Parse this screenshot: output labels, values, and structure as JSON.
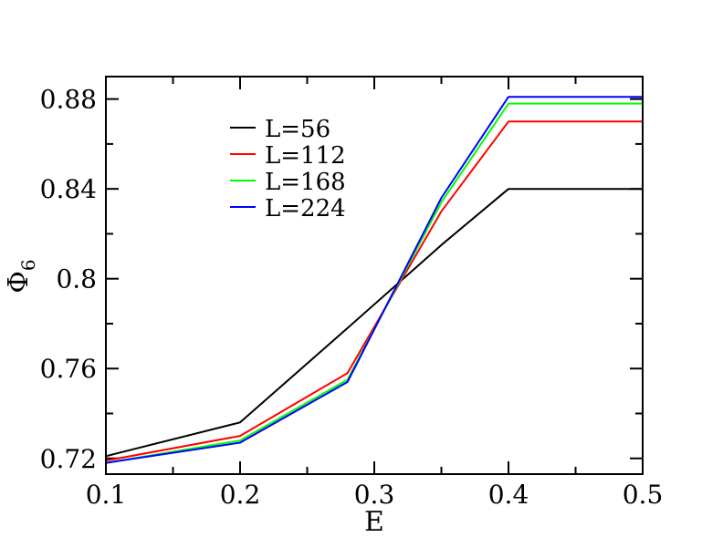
{
  "chart_data": {
    "type": "line",
    "xlabel": "E",
    "ylabel": "Φ",
    "ylabel_sub": "6",
    "xlim": [
      0.1,
      0.5
    ],
    "ylim": [
      0.713,
      0.89
    ],
    "xticks": [
      0.1,
      0.2,
      0.3,
      0.4,
      0.5
    ],
    "xtick_labels": [
      "0.1",
      "0.2",
      "0.3",
      "0.4",
      "0.5"
    ],
    "yticks": [
      0.72,
      0.76,
      0.8,
      0.84,
      0.88
    ],
    "ytick_labels": [
      "0.72",
      "0.76",
      "0.8",
      "0.84",
      "0.88"
    ],
    "grid": false,
    "legend_position": "top-left",
    "series": [
      {
        "name": "L=56",
        "color": "#000000",
        "x": [
          0.1,
          0.2,
          0.28,
          0.35,
          0.4,
          0.5
        ],
        "y": [
          0.721,
          0.736,
          0.778,
          0.815,
          0.84,
          0.84
        ]
      },
      {
        "name": "L=112",
        "color": "#ff0000",
        "x": [
          0.1,
          0.2,
          0.28,
          0.35,
          0.4,
          0.5
        ],
        "y": [
          0.719,
          0.73,
          0.758,
          0.83,
          0.87,
          0.87
        ]
      },
      {
        "name": "L=168",
        "color": "#00ff00",
        "x": [
          0.1,
          0.2,
          0.28,
          0.35,
          0.4,
          0.5
        ],
        "y": [
          0.718,
          0.728,
          0.755,
          0.834,
          0.878,
          0.878
        ]
      },
      {
        "name": "L=224",
        "color": "#0000ff",
        "x": [
          0.1,
          0.2,
          0.28,
          0.35,
          0.4,
          0.5
        ],
        "y": [
          0.718,
          0.727,
          0.754,
          0.836,
          0.881,
          0.881
        ]
      }
    ]
  }
}
